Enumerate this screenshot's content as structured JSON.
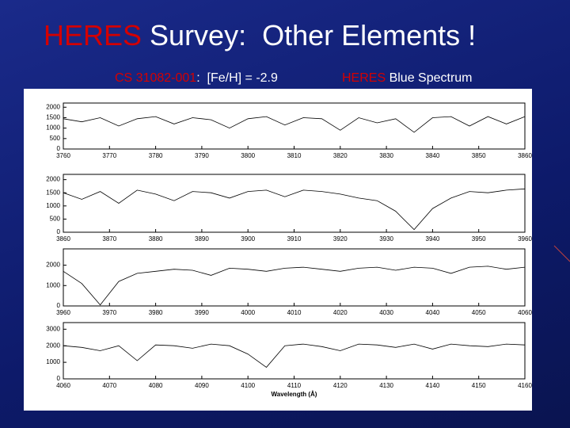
{
  "slide": {
    "title": [
      {
        "text": "HERES",
        "color": "#d40000"
      },
      {
        "text": " Survey:  Other Elements !",
        "color": "#ffffff"
      }
    ],
    "subtitle_left": [
      {
        "text": "CS 31082-001",
        "color": "#d40000"
      },
      {
        "text": ":  [Fe/H] = -2.9",
        "color": "#ffffff"
      }
    ],
    "subtitle_right": [
      {
        "text": "HERES",
        "color": "#d40000"
      },
      {
        "text": " Blue Spectrum",
        "color": "#ffffff"
      }
    ]
  },
  "chart_data": [
    {
      "type": "line",
      "color": "#000000",
      "x": [
        3760,
        3764,
        3768,
        3772,
        3776,
        3780,
        3784,
        3788,
        3792,
        3796,
        3800,
        3804,
        3808,
        3812,
        3816,
        3820,
        3824,
        3828,
        3832,
        3836,
        3840,
        3844,
        3848,
        3852,
        3856,
        3860
      ],
      "values": [
        1450,
        1300,
        1500,
        1100,
        1450,
        1550,
        1200,
        1500,
        1400,
        1000,
        1450,
        1550,
        1150,
        1500,
        1450,
        900,
        1500,
        1250,
        1450,
        800,
        1500,
        1550,
        1100,
        1550,
        1200,
        1550
      ],
      "xlim": [
        3760,
        3860
      ],
      "xticks": [
        3760,
        3770,
        3780,
        3790,
        3800,
        3810,
        3820,
        3830,
        3840,
        3850,
        3860
      ],
      "ylim": [
        0,
        2200
      ],
      "yticks": [
        0,
        500,
        1000,
        1500,
        2000
      ]
    },
    {
      "type": "line",
      "color": "#000000",
      "x": [
        3860,
        3864,
        3868,
        3872,
        3876,
        3880,
        3884,
        3888,
        3892,
        3896,
        3900,
        3904,
        3908,
        3912,
        3916,
        3920,
        3924,
        3928,
        3932,
        3936,
        3940,
        3944,
        3948,
        3952,
        3956,
        3960
      ],
      "values": [
        1500,
        1250,
        1550,
        1100,
        1600,
        1450,
        1200,
        1550,
        1500,
        1300,
        1550,
        1600,
        1350,
        1600,
        1550,
        1450,
        1300,
        1200,
        800,
        100,
        900,
        1300,
        1550,
        1500,
        1600,
        1650
      ],
      "xlim": [
        3860,
        3960
      ],
      "xticks": [
        3860,
        3870,
        3880,
        3890,
        3900,
        3910,
        3920,
        3930,
        3940,
        3950,
        3960
      ],
      "ylim": [
        0,
        2200
      ],
      "yticks": [
        0,
        500,
        1000,
        1500,
        2000
      ]
    },
    {
      "type": "line",
      "color": "#000000",
      "x": [
        3960,
        3964,
        3968,
        3972,
        3976,
        3980,
        3984,
        3988,
        3992,
        3996,
        4000,
        4004,
        4008,
        4012,
        4016,
        4020,
        4024,
        4028,
        4032,
        4036,
        4040,
        4044,
        4048,
        4052,
        4056,
        4060
      ],
      "values": [
        1700,
        1100,
        50,
        1200,
        1600,
        1700,
        1800,
        1750,
        1500,
        1850,
        1800,
        1700,
        1850,
        1900,
        1800,
        1700,
        1850,
        1900,
        1750,
        1900,
        1850,
        1600,
        1900,
        1950,
        1800,
        1900
      ],
      "xlim": [
        3960,
        4060
      ],
      "xticks": [
        3960,
        3970,
        3980,
        3990,
        4000,
        4010,
        4020,
        4030,
        4040,
        4050,
        4060
      ],
      "ylim": [
        0,
        2800
      ],
      "yticks": [
        0,
        1000,
        2000
      ]
    },
    {
      "type": "line",
      "color": "#000000",
      "x_label": "Wavelength (Å)",
      "x": [
        4060,
        4064,
        4068,
        4072,
        4076,
        4080,
        4084,
        4088,
        4092,
        4096,
        4100,
        4104,
        4108,
        4112,
        4116,
        4120,
        4124,
        4128,
        4132,
        4136,
        4140,
        4144,
        4148,
        4152,
        4156,
        4160
      ],
      "values": [
        2000,
        1900,
        1700,
        2000,
        1100,
        2050,
        2000,
        1850,
        2100,
        2000,
        1500,
        700,
        2000,
        2100,
        1950,
        1700,
        2100,
        2050,
        1900,
        2100,
        1800,
        2100,
        2000,
        1950,
        2100,
        2050
      ],
      "xlim": [
        4060,
        4160
      ],
      "xticks": [
        4060,
        4070,
        4080,
        4090,
        4100,
        4110,
        4120,
        4130,
        4140,
        4150,
        4160
      ],
      "ylim": [
        0,
        3400
      ],
      "yticks": [
        0,
        1000,
        2000,
        3000
      ]
    }
  ]
}
